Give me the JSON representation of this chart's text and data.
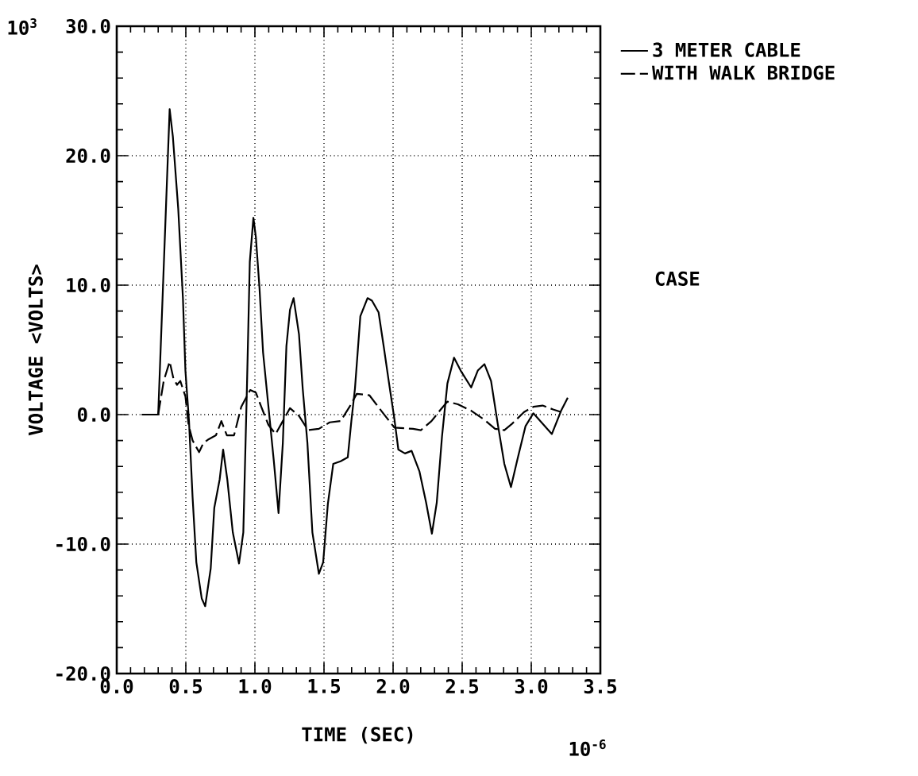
{
  "chart_data": {
    "type": "line",
    "xlabel": "TIME   (SEC)",
    "ylabel": "VOLTAGE   <VOLTS>",
    "annotations": [
      "10$^{3}$",
      "10$^{-6}$",
      "CASE"
    ],
    "xlim": [
      0,
      3.5
    ],
    "ylim": [
      -20,
      30
    ],
    "xticks": [
      {
        "value": 0,
        "label": "0.0"
      },
      {
        "value": 0.5,
        "label": "0.5"
      },
      {
        "value": 1,
        "label": "1.0"
      },
      {
        "value": 1.5,
        "label": "1.5"
      },
      {
        "value": 2,
        "label": "2.0"
      },
      {
        "value": 2.5,
        "label": "2.5"
      },
      {
        "value": 3,
        "label": "3.0"
      },
      {
        "value": 3.5,
        "label": "3.5"
      }
    ],
    "yticks": [
      {
        "value": -20,
        "label": "-20.0"
      },
      {
        "value": -10,
        "label": "-10.0"
      },
      {
        "value": 0,
        "label": "0.0"
      },
      {
        "value": 10,
        "label": "10.0"
      },
      {
        "value": 20,
        "label": "20.0"
      },
      {
        "value": 30,
        "label": "30.0"
      }
    ],
    "grid": true,
    "legend": "top right",
    "marker": "none",
    "series": [
      {
        "name": "3 METER CABLE",
        "color": "#000000",
        "line_style": "solid",
        "x": [
          0.18,
          0.3,
          0.383,
          0.406,
          0.445,
          0.479,
          0.497,
          0.523,
          0.549,
          0.576,
          0.615,
          0.64,
          0.68,
          0.706,
          0.745,
          0.77,
          0.8,
          0.84,
          0.885,
          0.916,
          0.942,
          0.963,
          0.989,
          1.007,
          1.033,
          1.059,
          1.098,
          1.137,
          1.171,
          1.202,
          1.228,
          1.254,
          1.28,
          1.319,
          1.346,
          1.38,
          1.416,
          1.463,
          1.494,
          1.528,
          1.567,
          1.62,
          1.672,
          1.698,
          1.724,
          1.763,
          1.815,
          1.847,
          1.895,
          1.933,
          1.971,
          2.009,
          2.038,
          2.086,
          2.134,
          2.191,
          2.239,
          2.281,
          2.316,
          2.354,
          2.393,
          2.441,
          2.489,
          2.565,
          2.613,
          2.661,
          2.709,
          2.757,
          2.805,
          2.853,
          2.901,
          2.958,
          3.015,
          3.082,
          3.149,
          3.216,
          3.264
        ],
        "values": [
          0,
          0,
          23.6,
          21.5,
          15.9,
          9.0,
          3.4,
          -0.5,
          -6.4,
          -11.4,
          -14.2,
          -14.8,
          -11.9,
          -7.2,
          -5.0,
          -2.7,
          -5.0,
          -9.1,
          -11.5,
          -9.1,
          2.0,
          11.8,
          15.2,
          13.7,
          9.8,
          4.8,
          0.6,
          -3.6,
          -7.6,
          -2.2,
          5.3,
          8.1,
          9.0,
          6.2,
          2.0,
          -2.2,
          -9.1,
          -12.3,
          -11.4,
          -6.9,
          -3.8,
          -3.6,
          -3.3,
          -0.5,
          2.0,
          7.6,
          9.0,
          8.8,
          7.9,
          5.2,
          2.4,
          -0.3,
          -2.7,
          -3.0,
          -2.8,
          -4.4,
          -6.8,
          -9.2,
          -6.8,
          -1.7,
          2.4,
          4.4,
          3.4,
          2.1,
          3.4,
          3.9,
          2.6,
          -0.7,
          -3.8,
          -5.6,
          -3.4,
          -0.9,
          0.1,
          -0.7,
          -1.5,
          0.3,
          1.3
        ]
      },
      {
        "name": "WITH WALK BRIDGE",
        "color": "#000000",
        "line_style": "dashed",
        "x": [
          0.3,
          0.34,
          0.383,
          0.41,
          0.436,
          0.46,
          0.497,
          0.52,
          0.549,
          0.596,
          0.627,
          0.666,
          0.718,
          0.757,
          0.797,
          0.849,
          0.901,
          0.966,
          1.007,
          1.046,
          1.098,
          1.15,
          1.202,
          1.254,
          1.319,
          1.385,
          1.463,
          1.541,
          1.62,
          1.685,
          1.737,
          1.828,
          1.914,
          2.009,
          2.144,
          2.201,
          2.278,
          2.345,
          2.393,
          2.469,
          2.565,
          2.661,
          2.738,
          2.805,
          2.862,
          2.948,
          3.015,
          3.082,
          3.158,
          3.216
        ],
        "values": [
          0,
          2.6,
          4.1,
          2.8,
          2.3,
          2.6,
          1.4,
          -0.8,
          -2.0,
          -2.9,
          -2.2,
          -1.9,
          -1.6,
          -0.5,
          -1.6,
          -1.6,
          0.6,
          1.9,
          1.7,
          0.6,
          -0.8,
          -1.5,
          -0.5,
          0.5,
          -0.1,
          -1.2,
          -1.1,
          -0.6,
          -0.5,
          0.6,
          1.6,
          1.5,
          0.3,
          -1.0,
          -1.1,
          -1.2,
          -0.5,
          0.4,
          1.0,
          0.8,
          0.3,
          -0.4,
          -1.1,
          -1.2,
          -0.7,
          0.2,
          0.6,
          0.7,
          0.4,
          0.2
        ]
      }
    ]
  }
}
